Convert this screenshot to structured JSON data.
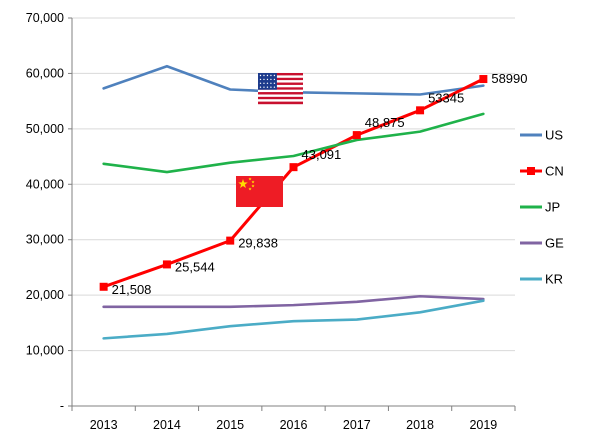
{
  "chart_data": {
    "type": "line",
    "title": "",
    "xlabel": "",
    "ylabel": "",
    "ylim": [
      0,
      70000
    ],
    "yticks": [
      0,
      10000,
      20000,
      30000,
      40000,
      50000,
      60000,
      70000
    ],
    "ytick_labels": [
      "-",
      "10,000",
      "20,000",
      "30,000",
      "40,000",
      "50,000",
      "60,000",
      "70,000"
    ],
    "categories": [
      "2013",
      "2014",
      "2015",
      "2016",
      "2017",
      "2018",
      "2019"
    ],
    "grid": "horizontal",
    "legend_position": "right",
    "series": [
      {
        "name": "US",
        "color": "#4f81bd",
        "values": [
          57300,
          61300,
          57100,
          56600,
          56400,
          56200,
          57800
        ],
        "markers": false
      },
      {
        "name": "CN",
        "color": "#ff0000",
        "values": [
          21508,
          25544,
          29838,
          43091,
          48875,
          53345,
          58990
        ],
        "markers": true,
        "data_labels": [
          "21,508",
          "25,544",
          "29,838",
          "43,091",
          "48,875",
          "53345",
          "58990"
        ]
      },
      {
        "name": "JP",
        "color": "#1fb24a",
        "values": [
          43700,
          42200,
          43900,
          45100,
          48000,
          49500,
          52700
        ],
        "markers": false
      },
      {
        "name": "GE",
        "color": "#8064a2",
        "values": [
          17900,
          17900,
          17900,
          18200,
          18800,
          19800,
          19300
        ],
        "markers": false
      },
      {
        "name": "KR",
        "color": "#4bacc6",
        "values": [
          12200,
          13000,
          14400,
          15300,
          15600,
          16900,
          19000
        ],
        "markers": false
      }
    ],
    "annotations": [
      {
        "type": "flag",
        "icon": "us-flag-icon",
        "near": {
          "x": "2016",
          "y": 56600
        }
      },
      {
        "type": "flag",
        "icon": "china-flag-icon",
        "near": {
          "x": "2015",
          "y": 38500
        }
      }
    ]
  }
}
